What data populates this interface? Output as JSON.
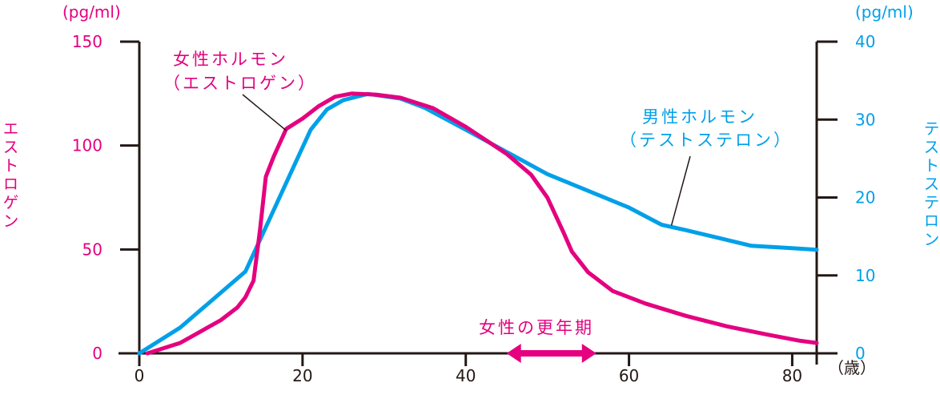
{
  "chart_data": {
    "type": "line",
    "x_axis": {
      "unit_label": "（歳）",
      "ticks": [
        0,
        20,
        40,
        60,
        80
      ],
      "tick_labels": [
        "0",
        "20",
        "40",
        "60",
        "80"
      ],
      "range": [
        0,
        83
      ]
    },
    "y_left": {
      "unit": "(pg/ml)",
      "label": "エストロゲン",
      "ticks": [
        0,
        50,
        100,
        150
      ],
      "tick_labels": [
        "0",
        "50",
        "100",
        "150"
      ],
      "range": [
        0,
        150
      ],
      "color": "#e4007f"
    },
    "y_right": {
      "unit": "(pg/ml)",
      "label": "テストステロン",
      "ticks": [
        0,
        10,
        20,
        30,
        40
      ],
      "tick_labels": [
        "0",
        "10",
        "20",
        "30",
        "40"
      ],
      "range": [
        0,
        40
      ],
      "color": "#00a0e9"
    },
    "series": [
      {
        "name": "女性ホルモン（エストロゲン）",
        "label_lines": [
          "女性ホルモン",
          "（エストロゲン）"
        ],
        "axis": "left",
        "color": "#e4007f",
        "points": [
          [
            1,
            0
          ],
          [
            5,
            5
          ],
          [
            10,
            16
          ],
          [
            12,
            22
          ],
          [
            13,
            27
          ],
          [
            14,
            35
          ],
          [
            14.8,
            60
          ],
          [
            15.5,
            85
          ],
          [
            16.5,
            95
          ],
          [
            18,
            108
          ],
          [
            20,
            113
          ],
          [
            22,
            119
          ],
          [
            24,
            123.5
          ],
          [
            26,
            125
          ],
          [
            29,
            124.5
          ],
          [
            32,
            123
          ],
          [
            36,
            118
          ],
          [
            40,
            109
          ],
          [
            45,
            96
          ],
          [
            48,
            86
          ],
          [
            50,
            75
          ],
          [
            52,
            58
          ],
          [
            53,
            49
          ],
          [
            55,
            39
          ],
          [
            58,
            30
          ],
          [
            62,
            24
          ],
          [
            67,
            18
          ],
          [
            72,
            13
          ],
          [
            77,
            9
          ],
          [
            81,
            6
          ],
          [
            83,
            5
          ]
        ]
      },
      {
        "name": "男性ホルモン（テストステロン）",
        "label_lines": [
          "男性ホルモン",
          "（テストステロン）"
        ],
        "axis": "right",
        "color": "#00a0e9",
        "points": [
          [
            0,
            0
          ],
          [
            5,
            3.3
          ],
          [
            13,
            10.5
          ],
          [
            21,
            28.7
          ],
          [
            23,
            31.3
          ],
          [
            25,
            32.5
          ],
          [
            28,
            33.3
          ],
          [
            32,
            32.7
          ],
          [
            35,
            31.5
          ],
          [
            40,
            28.7
          ],
          [
            50,
            23
          ],
          [
            60,
            18.7
          ],
          [
            64,
            16.5
          ],
          [
            67,
            15.8
          ],
          [
            75,
            13.8
          ],
          [
            80,
            13.5
          ],
          [
            83,
            13.3
          ]
        ]
      }
    ],
    "annotation": {
      "text": "女性の更年期",
      "range": [
        45,
        56
      ],
      "color": "#e4007f"
    }
  }
}
